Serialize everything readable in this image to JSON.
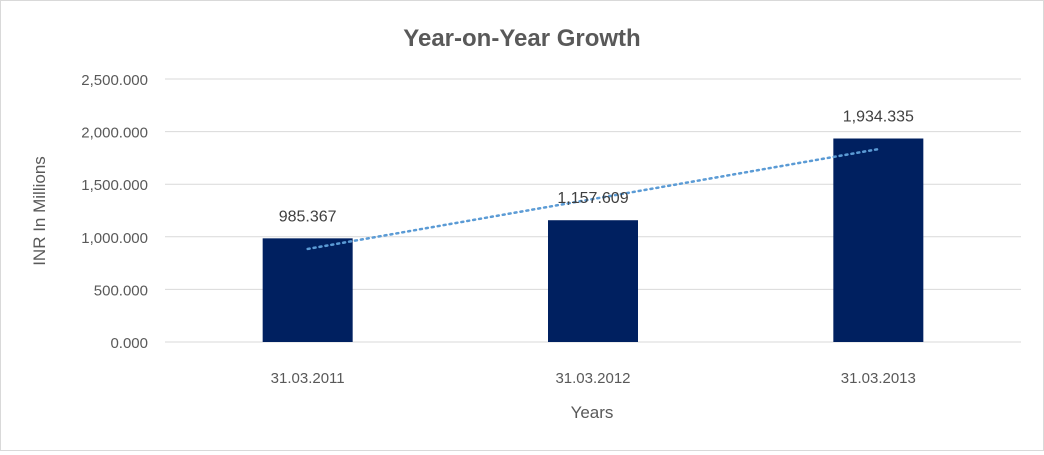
{
  "chart_data": {
    "type": "bar",
    "title": "Year-on-Year Growth",
    "xlabel": "Years",
    "ylabel": "INR In Millions",
    "categories": [
      "31.03.2011",
      "31.03.2012",
      "31.03.2013"
    ],
    "values": [
      985.367,
      1157.609,
      1934.335
    ],
    "data_labels": [
      "985.367",
      "1,157.609",
      "1,934.335"
    ],
    "ylim": [
      0,
      2500
    ],
    "yticks": [
      "0.000",
      "500.000",
      "1,000.000",
      "1,500.000",
      "2,000.000",
      "2,500.000"
    ],
    "grid": true,
    "trendline": {
      "type": "linear",
      "style": "dotted"
    },
    "colors": {
      "bar": "#002060",
      "trendline": "#5b9bd5",
      "grid": "#d9d9d9",
      "text": "#595959"
    }
  }
}
